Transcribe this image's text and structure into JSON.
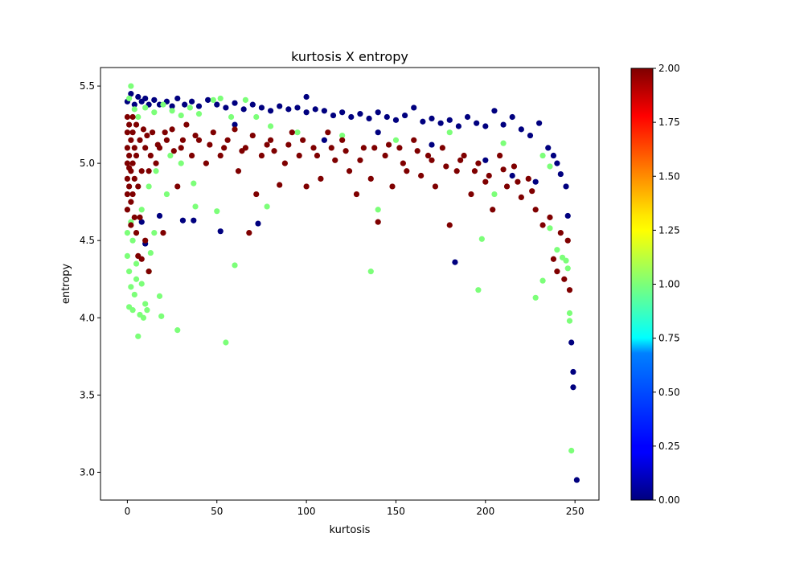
{
  "chart_data": {
    "type": "scatter",
    "title": "kurtosis X entropy",
    "xlabel": "kurtosis",
    "ylabel": "entropy",
    "xlim": [
      -15.0,
      263.4
    ],
    "ylim": [
      2.82,
      5.62
    ],
    "xticks": [
      0,
      50,
      100,
      150,
      200,
      250
    ],
    "xtick_labels": [
      "0",
      "50",
      "100",
      "150",
      "200",
      "250"
    ],
    "yticks": [
      3.0,
      3.5,
      4.0,
      4.5,
      5.0,
      5.5
    ],
    "ytick_labels": [
      "3.0",
      "3.5",
      "4.0",
      "4.5",
      "5.0",
      "5.5"
    ],
    "grid": false,
    "colormap": "jet",
    "colorbar": {
      "min": 0.0,
      "max": 2.0,
      "ticks": [
        0.0,
        0.25,
        0.5,
        0.75,
        1.0,
        1.25,
        1.5,
        1.75,
        2.0
      ],
      "tick_labels": [
        "0.00",
        "0.25",
        "0.50",
        "0.75",
        "1.00",
        "1.25",
        "1.50",
        "1.75",
        "2.00"
      ]
    },
    "class_colors": {
      "0": "#00007f",
      "1": "#7cff79",
      "2": "#7f0000"
    },
    "series": [
      {
        "class_value": 0,
        "color": "#00007f",
        "points": [
          [
            0,
            5.4
          ],
          [
            2,
            5.45
          ],
          [
            4,
            5.38
          ],
          [
            6,
            5.43
          ],
          [
            8,
            5.4
          ],
          [
            10,
            5.42
          ],
          [
            12,
            5.38
          ],
          [
            15,
            5.41
          ],
          [
            18,
            5.38
          ],
          [
            22,
            5.4
          ],
          [
            25,
            5.37
          ],
          [
            28,
            5.42
          ],
          [
            32,
            5.38
          ],
          [
            36,
            5.4
          ],
          [
            40,
            5.37
          ],
          [
            45,
            5.41
          ],
          [
            50,
            5.38
          ],
          [
            55,
            5.36
          ],
          [
            60,
            5.39
          ],
          [
            65,
            5.35
          ],
          [
            70,
            5.38
          ],
          [
            75,
            5.36
          ],
          [
            80,
            5.34
          ],
          [
            85,
            5.37
          ],
          [
            90,
            5.35
          ],
          [
            95,
            5.36
          ],
          [
            100,
            5.43
          ],
          [
            100,
            5.33
          ],
          [
            105,
            5.35
          ],
          [
            110,
            5.34
          ],
          [
            115,
            5.31
          ],
          [
            120,
            5.33
          ],
          [
            125,
            5.3
          ],
          [
            130,
            5.32
          ],
          [
            135,
            5.29
          ],
          [
            140,
            5.33
          ],
          [
            145,
            5.3
          ],
          [
            150,
            5.28
          ],
          [
            155,
            5.31
          ],
          [
            160,
            5.36
          ],
          [
            165,
            5.27
          ],
          [
            170,
            5.29
          ],
          [
            175,
            5.26
          ],
          [
            180,
            5.28
          ],
          [
            185,
            5.24
          ],
          [
            190,
            5.3
          ],
          [
            195,
            5.26
          ],
          [
            200,
            5.24
          ],
          [
            205,
            5.34
          ],
          [
            210,
            5.25
          ],
          [
            215,
            5.3
          ],
          [
            220,
            5.22
          ],
          [
            225,
            5.18
          ],
          [
            230,
            5.26
          ],
          [
            235,
            5.1
          ],
          [
            238,
            5.05
          ],
          [
            240,
            5.0
          ],
          [
            242,
            4.93
          ],
          [
            245,
            4.85
          ],
          [
            246,
            4.66
          ],
          [
            248,
            3.84
          ],
          [
            249,
            3.65
          ],
          [
            249,
            3.55
          ],
          [
            251,
            2.95
          ],
          [
            8,
            4.62
          ],
          [
            10,
            4.48
          ],
          [
            18,
            4.66
          ],
          [
            31,
            4.63
          ],
          [
            37,
            4.63
          ],
          [
            52,
            4.56
          ],
          [
            73,
            4.61
          ],
          [
            183,
            4.36
          ],
          [
            60,
            5.25
          ],
          [
            110,
            5.15
          ],
          [
            140,
            5.2
          ],
          [
            170,
            5.12
          ],
          [
            200,
            5.02
          ],
          [
            215,
            4.92
          ],
          [
            228,
            4.88
          ]
        ]
      },
      {
        "class_value": 1,
        "color": "#7cff79",
        "points": [
          [
            2,
            5.5
          ],
          [
            1,
            5.42
          ],
          [
            4,
            5.35
          ],
          [
            6,
            5.3
          ],
          [
            10,
            5.36
          ],
          [
            15,
            5.33
          ],
          [
            20,
            5.38
          ],
          [
            25,
            5.34
          ],
          [
            30,
            5.31
          ],
          [
            35,
            5.36
          ],
          [
            40,
            5.32
          ],
          [
            48,
            5.41
          ],
          [
            52,
            5.42
          ],
          [
            58,
            5.3
          ],
          [
            66,
            5.41
          ],
          [
            72,
            5.3
          ],
          [
            80,
            5.24
          ],
          [
            95,
            5.2
          ],
          [
            120,
            5.18
          ],
          [
            150,
            5.15
          ],
          [
            180,
            5.2
          ],
          [
            210,
            5.13
          ],
          [
            232,
            5.05
          ],
          [
            236,
            4.98
          ],
          [
            0,
            4.55
          ],
          [
            0,
            4.4
          ],
          [
            1,
            4.3
          ],
          [
            2,
            4.2
          ],
          [
            1,
            4.07
          ],
          [
            3,
            4.05
          ],
          [
            4,
            4.15
          ],
          [
            5,
            4.25
          ],
          [
            6,
            3.88
          ],
          [
            7,
            4.02
          ],
          [
            8,
            4.22
          ],
          [
            9,
            4.0
          ],
          [
            10,
            4.09
          ],
          [
            11,
            4.05
          ],
          [
            12,
            4.3
          ],
          [
            13,
            4.42
          ],
          [
            15,
            4.55
          ],
          [
            18,
            4.14
          ],
          [
            19,
            4.01
          ],
          [
            22,
            4.8
          ],
          [
            28,
            3.92
          ],
          [
            37,
            4.87
          ],
          [
            38,
            4.72
          ],
          [
            50,
            4.69
          ],
          [
            55,
            3.84
          ],
          [
            60,
            4.34
          ],
          [
            78,
            4.72
          ],
          [
            136,
            4.3
          ],
          [
            140,
            4.7
          ],
          [
            198,
            4.51
          ],
          [
            196,
            4.18
          ],
          [
            205,
            4.8
          ],
          [
            228,
            4.13
          ],
          [
            232,
            4.24
          ],
          [
            236,
            4.58
          ],
          [
            240,
            4.44
          ],
          [
            243,
            4.39
          ],
          [
            245,
            4.37
          ],
          [
            246,
            4.32
          ],
          [
            247,
            4.03
          ],
          [
            247,
            3.98
          ],
          [
            248,
            3.14
          ],
          [
            5,
            4.35
          ],
          [
            3,
            4.5
          ],
          [
            2,
            4.62
          ],
          [
            8,
            4.7
          ],
          [
            12,
            4.85
          ],
          [
            16,
            4.95
          ],
          [
            24,
            5.05
          ],
          [
            30,
            5.0
          ]
        ]
      },
      {
        "class_value": 2,
        "color": "#7f0000",
        "points": [
          [
            0,
            5.3
          ],
          [
            0,
            5.2
          ],
          [
            0,
            5.1
          ],
          [
            0,
            5.0
          ],
          [
            0,
            4.9
          ],
          [
            0,
            4.8
          ],
          [
            0,
            4.7
          ],
          [
            1,
            5.25
          ],
          [
            1,
            5.05
          ],
          [
            1,
            4.85
          ],
          [
            2,
            5.15
          ],
          [
            2,
            4.95
          ],
          [
            2,
            4.75
          ],
          [
            2,
            4.6
          ],
          [
            3,
            5.2
          ],
          [
            3,
            5.0
          ],
          [
            3,
            4.8
          ],
          [
            4,
            5.1
          ],
          [
            4,
            4.9
          ],
          [
            4,
            4.65
          ],
          [
            5,
            4.55
          ],
          [
            5,
            5.05
          ],
          [
            6,
            4.4
          ],
          [
            6,
            4.85
          ],
          [
            7,
            4.65
          ],
          [
            7,
            5.15
          ],
          [
            8,
            4.38
          ],
          [
            8,
            4.95
          ],
          [
            10,
            4.5
          ],
          [
            10,
            5.1
          ],
          [
            12,
            4.3
          ],
          [
            12,
            4.95
          ],
          [
            14,
            5.2
          ],
          [
            16,
            5.0
          ],
          [
            18,
            5.1
          ],
          [
            20,
            4.55
          ],
          [
            22,
            5.15
          ],
          [
            25,
            5.22
          ],
          [
            28,
            4.85
          ],
          [
            30,
            5.1
          ],
          [
            33,
            5.25
          ],
          [
            36,
            5.05
          ],
          [
            40,
            5.15
          ],
          [
            44,
            5.0
          ],
          [
            48,
            5.2
          ],
          [
            52,
            5.05
          ],
          [
            56,
            5.15
          ],
          [
            60,
            5.22
          ],
          [
            62,
            4.95
          ],
          [
            66,
            5.1
          ],
          [
            68,
            4.55
          ],
          [
            72,
            4.8
          ],
          [
            75,
            5.05
          ],
          [
            80,
            5.15
          ],
          [
            85,
            4.86
          ],
          [
            88,
            5.0
          ],
          [
            92,
            5.2
          ],
          [
            96,
            5.05
          ],
          [
            100,
            4.85
          ],
          [
            104,
            5.1
          ],
          [
            108,
            4.9
          ],
          [
            112,
            5.2
          ],
          [
            116,
            5.02
          ],
          [
            120,
            5.15
          ],
          [
            124,
            4.95
          ],
          [
            128,
            4.8
          ],
          [
            132,
            5.1
          ],
          [
            136,
            4.9
          ],
          [
            140,
            4.62
          ],
          [
            144,
            5.05
          ],
          [
            148,
            4.85
          ],
          [
            152,
            5.1
          ],
          [
            156,
            4.95
          ],
          [
            160,
            5.15
          ],
          [
            164,
            4.92
          ],
          [
            168,
            5.05
          ],
          [
            172,
            4.85
          ],
          [
            176,
            5.1
          ],
          [
            180,
            4.6
          ],
          [
            184,
            4.95
          ],
          [
            188,
            5.05
          ],
          [
            192,
            4.8
          ],
          [
            196,
            5.0
          ],
          [
            200,
            4.88
          ],
          [
            204,
            4.7
          ],
          [
            208,
            5.05
          ],
          [
            212,
            4.85
          ],
          [
            216,
            4.98
          ],
          [
            220,
            4.78
          ],
          [
            224,
            4.9
          ],
          [
            228,
            4.7
          ],
          [
            232,
            4.6
          ],
          [
            236,
            4.65
          ],
          [
            238,
            4.38
          ],
          [
            240,
            4.3
          ],
          [
            242,
            4.55
          ],
          [
            244,
            4.25
          ],
          [
            246,
            4.5
          ],
          [
            247,
            4.18
          ],
          [
            1,
            4.97
          ],
          [
            3,
            5.3
          ],
          [
            5,
            5.25
          ],
          [
            9,
            5.22
          ],
          [
            11,
            5.18
          ],
          [
            13,
            5.05
          ],
          [
            17,
            5.12
          ],
          [
            21,
            5.2
          ],
          [
            26,
            5.08
          ],
          [
            31,
            5.15
          ],
          [
            38,
            5.18
          ],
          [
            46,
            5.12
          ],
          [
            54,
            5.1
          ],
          [
            64,
            5.08
          ],
          [
            70,
            5.18
          ],
          [
            78,
            5.12
          ],
          [
            82,
            5.08
          ],
          [
            90,
            5.12
          ],
          [
            98,
            5.15
          ],
          [
            106,
            5.05
          ],
          [
            114,
            5.1
          ],
          [
            122,
            5.08
          ],
          [
            130,
            5.02
          ],
          [
            138,
            5.1
          ],
          [
            146,
            5.12
          ],
          [
            154,
            5.0
          ],
          [
            162,
            5.08
          ],
          [
            170,
            5.02
          ],
          [
            178,
            4.98
          ],
          [
            186,
            5.02
          ],
          [
            194,
            4.95
          ],
          [
            202,
            4.92
          ],
          [
            210,
            4.96
          ],
          [
            218,
            4.88
          ],
          [
            226,
            4.82
          ]
        ]
      }
    ]
  }
}
